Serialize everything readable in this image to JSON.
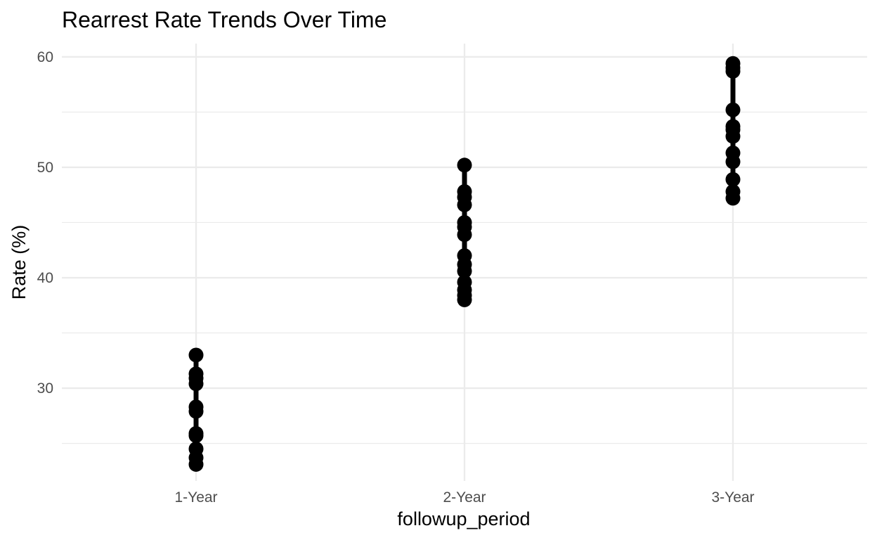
{
  "chart_data": {
    "type": "line",
    "title": "Rearrest Rate Trends Over Time",
    "xlabel": "followup_period",
    "ylabel": "Rate (%)",
    "categories": [
      "1-Year",
      "2-Year",
      "3-Year"
    ],
    "y_ticks": [
      30,
      40,
      50,
      60
    ],
    "ylim": [
      21.6,
      61.2
    ],
    "grid": true,
    "legend": "none",
    "series_color": "#000000",
    "points": {
      "1-Year": [
        33.0,
        31.3,
        30.9,
        30.4,
        28.3,
        27.9,
        25.9,
        25.7,
        24.5,
        23.7,
        23.1
      ],
      "2-Year": [
        50.2,
        47.8,
        47.3,
        46.6,
        45.0,
        44.6,
        43.9,
        42.0,
        41.2,
        40.6,
        39.6,
        38.9,
        38.4,
        38.0
      ],
      "3-Year": [
        59.4,
        59.0,
        58.7,
        55.2,
        53.7,
        53.4,
        52.8,
        51.3,
        50.5,
        48.9,
        47.8,
        47.2
      ]
    }
  }
}
